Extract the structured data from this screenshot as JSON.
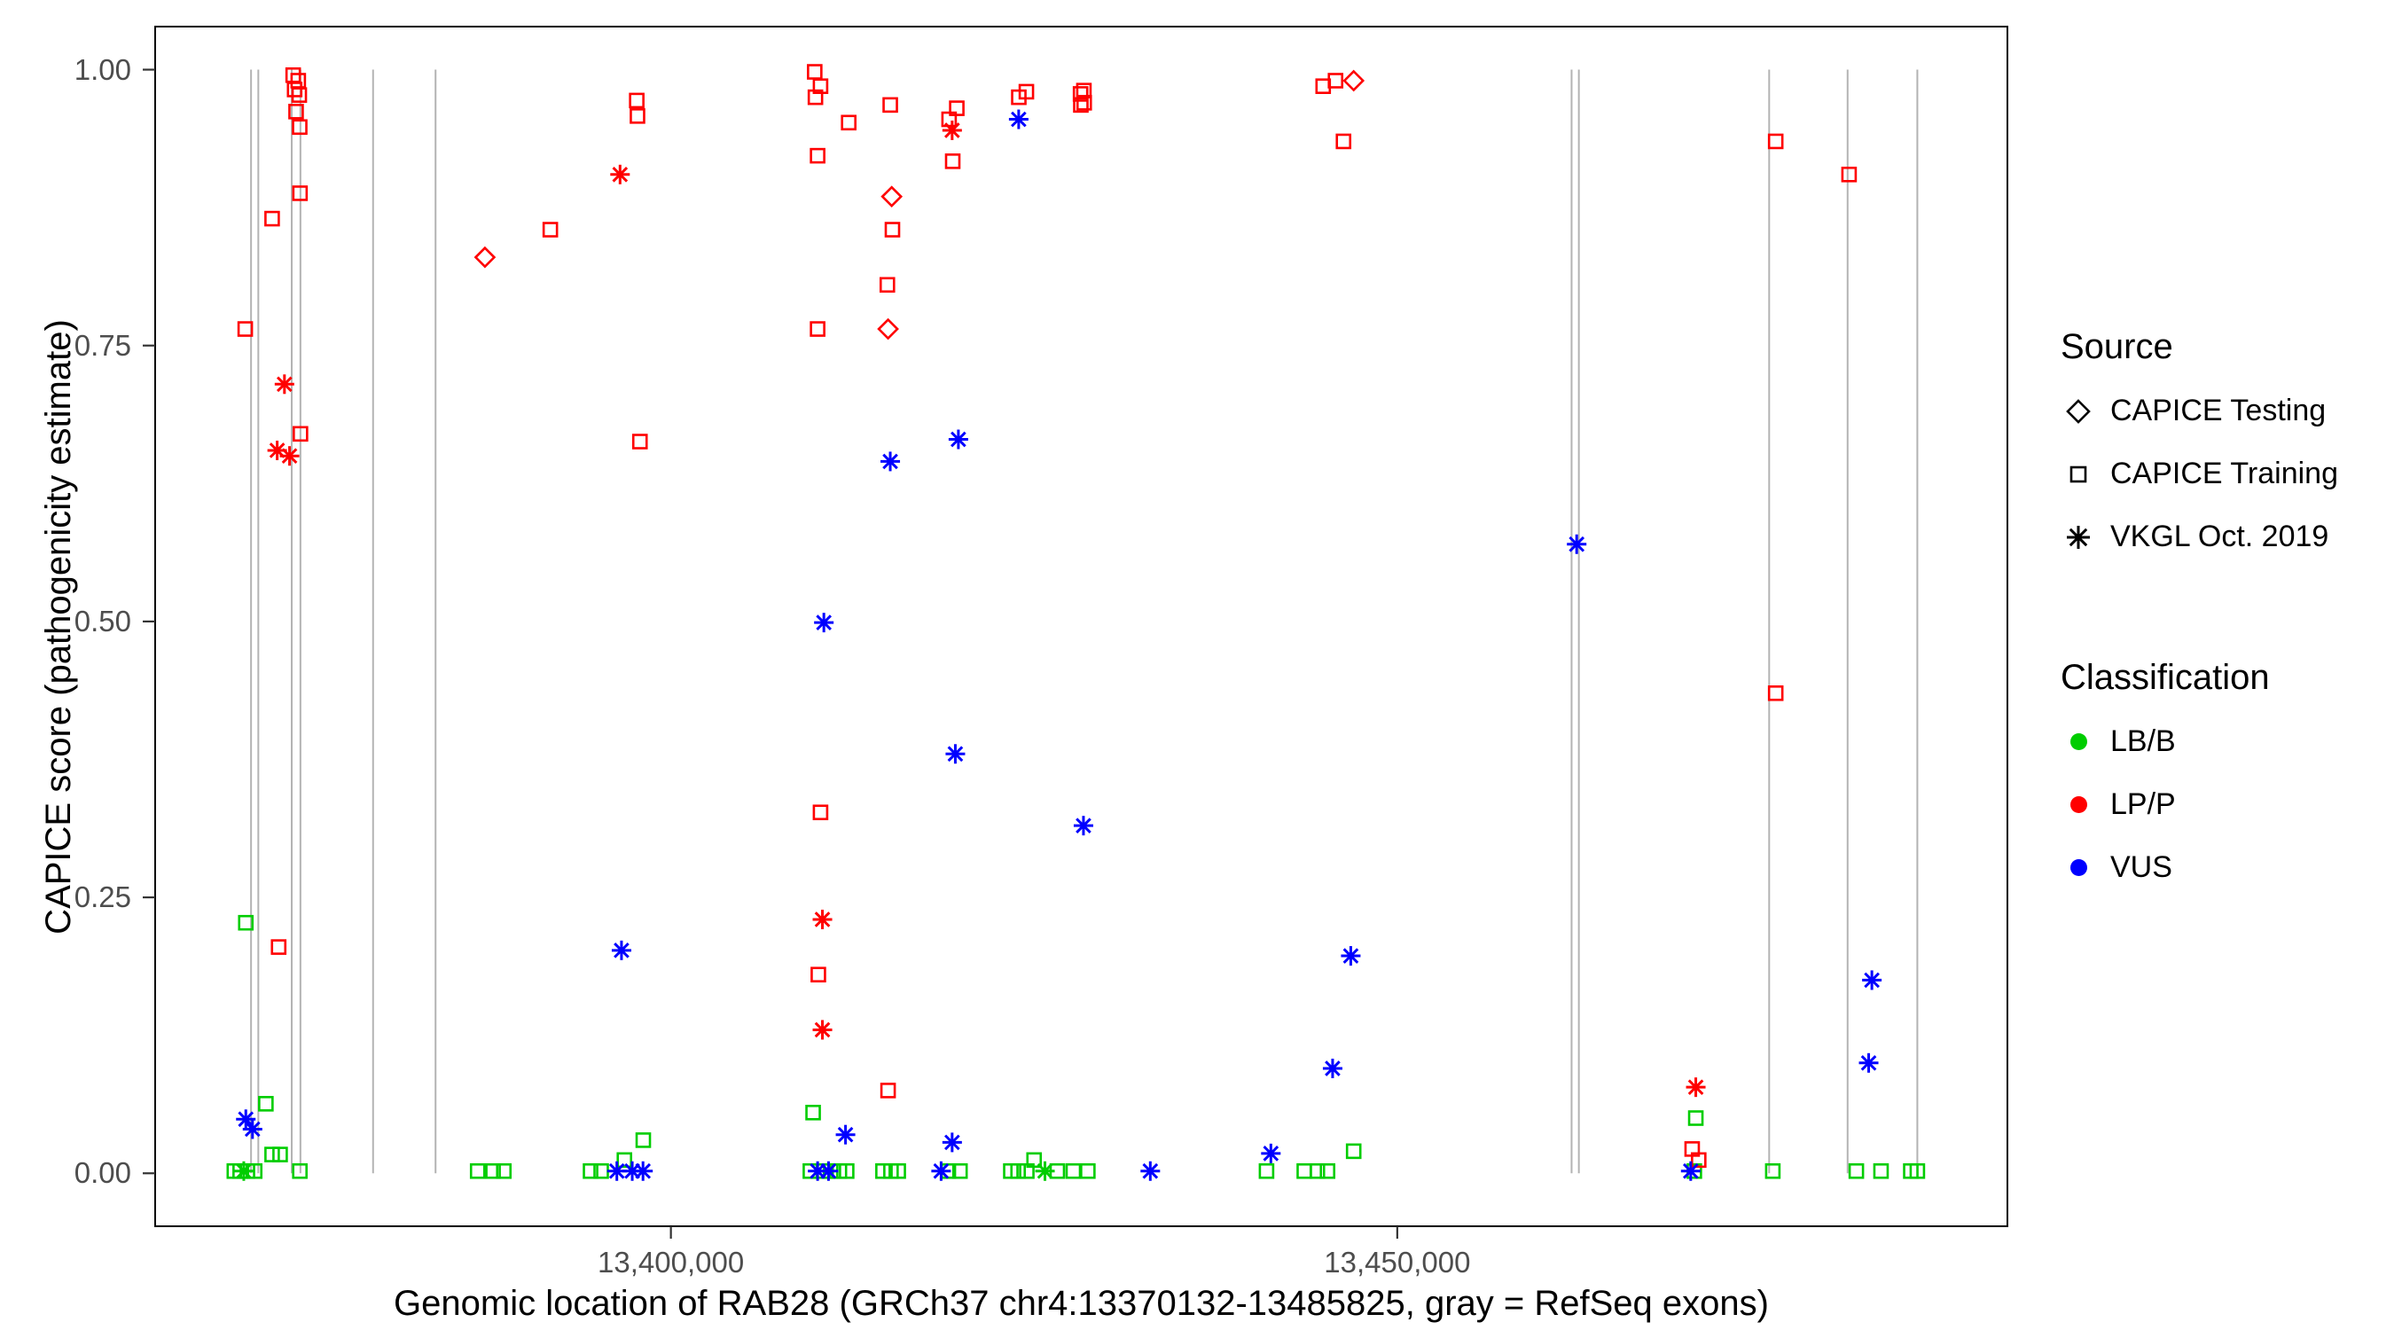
{
  "figure": {
    "background": "#FFFFFF"
  },
  "axes": {
    "x_label": "Genomic location of RAB28 (GRCh37 chr4:13370132-13485825, gray = RefSeq exons)",
    "y_label": "CAPICE score (pathogenicity estimate)"
  },
  "legend": {
    "source_title": "Source",
    "source_items": [
      {
        "label": "CAPICE Testing",
        "shape": "diamond"
      },
      {
        "label": "CAPICE Training",
        "shape": "square"
      },
      {
        "label": "VKGL Oct. 2019",
        "shape": "asterisk"
      }
    ],
    "classification_title": "Classification",
    "classification_items": [
      {
        "label": "LB/B",
        "color": "#00CD00"
      },
      {
        "label": "LP/P",
        "color": "#FF0000"
      },
      {
        "label": "VUS",
        "color": "#0000FF"
      }
    ]
  },
  "chart_data": {
    "type": "scatter",
    "title": "",
    "xlabel": "Genomic location of RAB28 (GRCh37 chr4:13370132-13485825, gray = RefSeq exons)",
    "ylabel": "CAPICE score (pathogenicity estimate)",
    "xlim": [
      13364500,
      13492000
    ],
    "ylim": [
      -0.048,
      1.039
    ],
    "grid": false,
    "legend_position": "right",
    "x_ticks": [
      {
        "value": 13400000,
        "label": "13,400,000"
      },
      {
        "value": 13450000,
        "label": "13,450,000"
      }
    ],
    "y_ticks": [
      {
        "value": 0.0,
        "label": "0.00"
      },
      {
        "value": 0.25,
        "label": "0.25"
      },
      {
        "value": 0.5,
        "label": "0.50"
      },
      {
        "value": 0.75,
        "label": "0.75"
      },
      {
        "value": 1.0,
        "label": "1.00"
      }
    ],
    "exon_line_color": "#B3B3B3",
    "refseq_exons_x": [
      13371100,
      13371600,
      13373900,
      13374500,
      13379500,
      13383800,
      13462000,
      13462500,
      13475600,
      13481000,
      13485800
    ],
    "colors": {
      "LB/B": "#00CD00",
      "LP/P": "#FF0000",
      "VUS": "#0000FF"
    },
    "series": [
      {
        "name": "CAPICE Training / LB/B",
        "source": "CAPICE Training",
        "classification": "LB/B",
        "shape": "square",
        "color": "#00CD00",
        "points": [
          [
            13370740,
            0.227
          ],
          [
            13372120,
            0.063
          ],
          [
            13372550,
            0.017
          ],
          [
            13373100,
            0.017
          ],
          [
            13369950,
            0.002
          ],
          [
            13370350,
            0.002
          ],
          [
            13370850,
            0.002
          ],
          [
            13371350,
            0.002
          ],
          [
            13374460,
            0.002
          ],
          [
            13386700,
            0.002
          ],
          [
            13387760,
            0.002
          ],
          [
            13388500,
            0.002
          ],
          [
            13394470,
            0.002
          ],
          [
            13395200,
            0.002
          ],
          [
            13396800,
            0.012
          ],
          [
            13398100,
            0.03
          ],
          [
            13409790,
            0.055
          ],
          [
            13409600,
            0.002
          ],
          [
            13410500,
            0.002
          ],
          [
            13411000,
            0.002
          ],
          [
            13411600,
            0.002
          ],
          [
            13412100,
            0.002
          ],
          [
            13414600,
            0.002
          ],
          [
            13415150,
            0.002
          ],
          [
            13415650,
            0.002
          ],
          [
            13419100,
            0.002
          ],
          [
            13419900,
            0.002
          ],
          [
            13423400,
            0.002
          ],
          [
            13423900,
            0.002
          ],
          [
            13424500,
            0.002
          ],
          [
            13425000,
            0.012
          ],
          [
            13426600,
            0.002
          ],
          [
            13427700,
            0.002
          ],
          [
            13428700,
            0.002
          ],
          [
            13441000,
            0.002
          ],
          [
            13443600,
            0.002
          ],
          [
            13444500,
            0.002
          ],
          [
            13445200,
            0.002
          ],
          [
            13447000,
            0.02
          ],
          [
            13470450,
            0.002
          ],
          [
            13470550,
            0.05
          ],
          [
            13475850,
            0.002
          ],
          [
            13481600,
            0.002
          ],
          [
            13483300,
            0.002
          ],
          [
            13485350,
            0.002
          ],
          [
            13485800,
            0.002
          ]
        ]
      },
      {
        "name": "CAPICE Training / LP/P",
        "source": "CAPICE Training",
        "classification": "LP/P",
        "shape": "square",
        "color": "#FF0000",
        "points": [
          [
            13374000,
            0.995
          ],
          [
            13374350,
            0.99
          ],
          [
            13374100,
            0.982
          ],
          [
            13374420,
            0.977
          ],
          [
            13374200,
            0.962
          ],
          [
            13374450,
            0.948
          ],
          [
            13374470,
            0.888
          ],
          [
            13372550,
            0.865
          ],
          [
            13370700,
            0.765
          ],
          [
            13374500,
            0.67
          ],
          [
            13373000,
            0.205
          ],
          [
            13391700,
            0.855
          ],
          [
            13397650,
            0.972
          ],
          [
            13397700,
            0.958
          ],
          [
            13397870,
            0.663
          ],
          [
            13409900,
            0.998
          ],
          [
            13410300,
            0.985
          ],
          [
            13409950,
            0.975
          ],
          [
            13410100,
            0.922
          ],
          [
            13412240,
            0.952
          ],
          [
            13415100,
            0.968
          ],
          [
            13415250,
            0.855
          ],
          [
            13414900,
            0.805
          ],
          [
            13410100,
            0.765
          ],
          [
            13410300,
            0.327
          ],
          [
            13410150,
            0.18
          ],
          [
            13414950,
            0.075
          ],
          [
            13419150,
            0.955
          ],
          [
            13419680,
            0.965
          ],
          [
            13419400,
            0.917
          ],
          [
            13423950,
            0.975
          ],
          [
            13424470,
            0.98
          ],
          [
            13428200,
            0.978
          ],
          [
            13428430,
            0.981
          ],
          [
            13428220,
            0.968
          ],
          [
            13428450,
            0.97
          ],
          [
            13444900,
            0.985
          ],
          [
            13445750,
            0.99
          ],
          [
            13446300,
            0.935
          ],
          [
            13470300,
            0.022
          ],
          [
            13470750,
            0.012
          ],
          [
            13476050,
            0.935
          ],
          [
            13476050,
            0.435
          ],
          [
            13481100,
            0.905
          ]
        ]
      },
      {
        "name": "CAPICE Testing / LP/P",
        "source": "CAPICE Testing",
        "classification": "LP/P",
        "shape": "diamond",
        "color": "#FF0000",
        "points": [
          [
            13387200,
            0.83
          ],
          [
            13415200,
            0.885
          ],
          [
            13414950,
            0.765
          ],
          [
            13447000,
            0.99
          ]
        ]
      },
      {
        "name": "VKGL Oct. 2019 / LB/B",
        "source": "VKGL Oct. 2019",
        "classification": "LB/B",
        "shape": "asterisk",
        "color": "#00CD00",
        "points": [
          [
            13370600,
            0.002
          ],
          [
            13425750,
            0.002
          ]
        ]
      },
      {
        "name": "VKGL Oct. 2019 / LP/P",
        "source": "VKGL Oct. 2019",
        "classification": "LP/P",
        "shape": "asterisk",
        "color": "#FF0000",
        "points": [
          [
            13373400,
            0.715
          ],
          [
            13372900,
            0.655
          ],
          [
            13373750,
            0.65
          ],
          [
            13396500,
            0.905
          ],
          [
            13410430,
            0.23
          ],
          [
            13410430,
            0.13
          ],
          [
            13419360,
            0.945
          ],
          [
            13470550,
            0.078
          ]
        ]
      },
      {
        "name": "VKGL Oct. 2019 / VUS",
        "source": "VKGL Oct. 2019",
        "classification": "VUS",
        "shape": "asterisk",
        "color": "#0000FF",
        "points": [
          [
            13370740,
            0.049
          ],
          [
            13371200,
            0.04
          ],
          [
            13396600,
            0.202
          ],
          [
            13396280,
            0.002
          ],
          [
            13397340,
            0.002
          ],
          [
            13398080,
            0.002
          ],
          [
            13415100,
            0.645
          ],
          [
            13410530,
            0.499
          ],
          [
            13412020,
            0.035
          ],
          [
            13410100,
            0.002
          ],
          [
            13410850,
            0.002
          ],
          [
            13419790,
            0.665
          ],
          [
            13419580,
            0.38
          ],
          [
            13419360,
            0.028
          ],
          [
            13418600,
            0.002
          ],
          [
            13423940,
            0.955
          ],
          [
            13428400,
            0.315
          ],
          [
            13433000,
            0.002
          ],
          [
            13441300,
            0.018
          ],
          [
            13446800,
            0.197
          ],
          [
            13445550,
            0.095
          ],
          [
            13462350,
            0.57
          ],
          [
            13470200,
            0.002
          ],
          [
            13482670,
            0.175
          ],
          [
            13482450,
            0.1
          ]
        ]
      }
    ]
  }
}
